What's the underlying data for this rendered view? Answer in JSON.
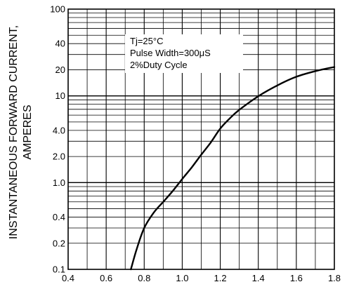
{
  "chart_data": {
    "type": "line",
    "title": "",
    "xlabel": "",
    "ylabel": [
      "INSTANTANEOUS FORWARD CURRENT,",
      "AMPERES"
    ],
    "x_scale": "linear",
    "y_scale": "log",
    "xlim": [
      0.4,
      1.8
    ],
    "ylim": [
      0.1,
      100
    ],
    "x_ticks": [
      {
        "value": 0.4,
        "label": "0.4"
      },
      {
        "value": 0.6,
        "label": "0.6"
      },
      {
        "value": 0.8,
        "label": "0.8"
      },
      {
        "value": 1.0,
        "label": "1.0"
      },
      {
        "value": 1.2,
        "label": "1.2"
      },
      {
        "value": 1.4,
        "label": "1.4"
      },
      {
        "value": 1.6,
        "label": "1.6"
      },
      {
        "value": 1.8,
        "label": "1.8"
      }
    ],
    "y_ticks": [
      {
        "value": 0.1,
        "label": "0.1"
      },
      {
        "value": 0.2,
        "label": "0.2"
      },
      {
        "value": 0.4,
        "label": "0.4"
      },
      {
        "value": 1,
        "label": "1.0"
      },
      {
        "value": 2,
        "label": "2.0"
      },
      {
        "value": 4,
        "label": "4.0"
      },
      {
        "value": 10,
        "label": "10"
      },
      {
        "value": 20,
        "label": "20"
      },
      {
        "value": 40,
        "label": "40"
      },
      {
        "value": 100,
        "label": "100"
      }
    ],
    "grid": true,
    "legend_lines": [
      "Tj=25°C",
      "Pulse Width=300μS",
      "2%Duty Cycle"
    ],
    "legend_placement": "top-center",
    "line_color": "#000000",
    "series": [
      {
        "x": [
          0.73,
          0.76,
          0.8,
          0.85,
          0.9,
          0.95,
          1.0,
          1.05,
          1.1,
          1.15,
          1.2,
          1.25,
          1.3,
          1.4,
          1.5,
          1.6,
          1.7,
          1.8
        ],
        "y": [
          0.1,
          0.17,
          0.3,
          0.45,
          0.6,
          0.8,
          1.1,
          1.5,
          2.1,
          2.9,
          4.2,
          5.5,
          6.9,
          9.9,
          13.2,
          16.6,
          19.3,
          21.5
        ]
      }
    ]
  }
}
